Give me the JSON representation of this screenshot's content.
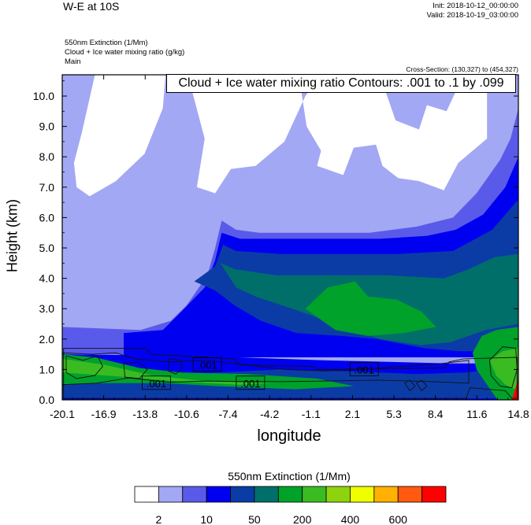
{
  "header": {
    "title": "W-E at 10S",
    "init": "Init: 2018-10-12_00:00:00",
    "valid": "Valid: 2018-10-19_03:00:00",
    "field_line": "550nm Extinction   (1/Mm)",
    "contour_line": "Cloud + Ice water mixing ratio   (g/kg)",
    "domain_line": "Main",
    "cross_section": "Cross-Section: (130,327) to (454,327)"
  },
  "annotation": "Cloud + Ice water mixing ratio Contours: .001 to .1 by .099",
  "colors": {
    "levels": [
      "#ffffff",
      "#a2a8f4",
      "#5a5aea",
      "#0000f0",
      "#0b3ca6",
      "#006f6a",
      "#00a22a",
      "#3bbb22",
      "#8ed40e",
      "#f0ff00",
      "#ffb000",
      "#ff5a10",
      "#ff0000"
    ]
  },
  "chart_data": {
    "type": "heatmap",
    "subtype": "vertical cross-section with filled contours and line contours",
    "title": "W-E at 10S",
    "xlabel": "longitude",
    "ylabel": "Height (km)",
    "xlim": [
      -20.1,
      14.8
    ],
    "ylim": [
      0.0,
      10.7
    ],
    "x_ticks": [
      "-20.1",
      "-16.9",
      "-13.8",
      "-10.6",
      "-7.4",
      "-4.2",
      "-1.1",
      "2.1",
      "5.3",
      "8.4",
      "11.6",
      "14.8"
    ],
    "y_ticks": [
      "0.0",
      "1.0",
      "2.0",
      "3.0",
      "4.0",
      "5.0",
      "6.0",
      "7.0",
      "8.0",
      "9.0",
      "10.0"
    ],
    "colorbar": {
      "title": "550nm Extinction  (1/Mm)",
      "labels": [
        "2",
        "10",
        "50",
        "200",
        "400",
        "600"
      ],
      "n_colors": 13
    },
    "contour_labels": [
      {
        "text": ".001",
        "x": -9.0,
        "y": 1.15
      },
      {
        "text": ".001",
        "x": -12.9,
        "y": 0.55
      },
      {
        "text": ".001",
        "x": -5.7,
        "y": 0.55
      },
      {
        "text": ".001",
        "x": 3.0,
        "y": 1.0
      }
    ],
    "regions": [
      {
        "level": 1,
        "points": [
          [
            -20.1,
            10.7
          ],
          [
            14.8,
            10.7
          ],
          [
            14.8,
            1.8
          ],
          [
            -20.1,
            1.8
          ]
        ]
      },
      {
        "level": 0,
        "points": [
          [
            -17.6,
            10.7
          ],
          [
            -12.2,
            10.7
          ],
          [
            -12.4,
            9.6
          ],
          [
            -13.8,
            8.1
          ],
          [
            -16.0,
            7.2
          ],
          [
            -18.0,
            6.7
          ],
          [
            -19.0,
            7.0
          ],
          [
            -19.2,
            7.8
          ],
          [
            -18.6,
            8.8
          ]
        ]
      },
      {
        "level": 0,
        "points": [
          [
            -10.5,
            10.7
          ],
          [
            -2.0,
            10.7
          ],
          [
            -1.4,
            9.0
          ],
          [
            -0.3,
            8.2
          ],
          [
            -0.6,
            7.7
          ],
          [
            1.4,
            7.4
          ],
          [
            2.2,
            8.3
          ],
          [
            3.9,
            8.4
          ],
          [
            4.4,
            7.7
          ],
          [
            5.6,
            7.3
          ],
          [
            7.2,
            7.2
          ],
          [
            9.1,
            6.9
          ],
          [
            10.2,
            7.8
          ],
          [
            12.4,
            8.6
          ],
          [
            12.4,
            10.7
          ],
          [
            10.6,
            10.7
          ],
          [
            9.3,
            9.5
          ],
          [
            7.8,
            9.7
          ],
          [
            7.2,
            8.9
          ],
          [
            5.4,
            9.2
          ],
          [
            4.2,
            10.7
          ],
          [
            -0.3,
            10.7
          ],
          [
            -1.5,
            10.0
          ],
          [
            -3.1,
            8.5
          ],
          [
            -5.3,
            7.7
          ],
          [
            -7.2,
            7.6
          ],
          [
            -8.4,
            6.8
          ],
          [
            -9.8,
            7.0
          ],
          [
            -9.2,
            8.6
          ]
        ]
      },
      {
        "level": 2,
        "points": [
          [
            -20.1,
            2.4
          ],
          [
            -14.1,
            2.3
          ],
          [
            -11.8,
            2.6
          ],
          [
            -10.6,
            3.1
          ],
          [
            -9.0,
            4.1
          ],
          [
            -8.4,
            5.0
          ],
          [
            -7.9,
            5.9
          ],
          [
            -6.8,
            5.6
          ],
          [
            -5.0,
            5.5
          ],
          [
            -1.5,
            5.5
          ],
          [
            3.4,
            5.5
          ],
          [
            7.0,
            5.7
          ],
          [
            9.8,
            6.0
          ],
          [
            11.6,
            6.8
          ],
          [
            13.4,
            7.9
          ],
          [
            14.2,
            8.6
          ],
          [
            14.8,
            9.6
          ],
          [
            14.8,
            1.5
          ],
          [
            -20.1,
            1.5
          ]
        ]
      },
      {
        "level": 3,
        "points": [
          [
            -15.4,
            2.2
          ],
          [
            -12.4,
            2.3
          ],
          [
            -11.0,
            2.9
          ],
          [
            -9.2,
            3.7
          ],
          [
            -8.4,
            4.6
          ],
          [
            -7.9,
            5.5
          ],
          [
            -6.5,
            5.3
          ],
          [
            -4.0,
            5.3
          ],
          [
            0.2,
            5.3
          ],
          [
            4.2,
            5.3
          ],
          [
            7.8,
            5.4
          ],
          [
            10.0,
            5.6
          ],
          [
            12.1,
            6.1
          ],
          [
            13.8,
            7.0
          ],
          [
            14.8,
            8.0
          ],
          [
            14.8,
            1.4
          ],
          [
            -15.4,
            1.4
          ]
        ]
      },
      {
        "level": 4,
        "points": [
          [
            -10.0,
            3.9
          ],
          [
            -8.4,
            4.4
          ],
          [
            -7.8,
            5.1
          ],
          [
            -6.8,
            4.9
          ],
          [
            -3.3,
            4.8
          ],
          [
            0.9,
            4.8
          ],
          [
            5.5,
            4.8
          ],
          [
            9.8,
            4.9
          ],
          [
            12.8,
            5.6
          ],
          [
            14.8,
            6.6
          ],
          [
            14.8,
            1.6
          ],
          [
            10.3,
            1.6
          ],
          [
            7.6,
            1.7
          ],
          [
            4.0,
            2.0
          ],
          [
            1.3,
            2.1
          ],
          [
            -2.2,
            2.2
          ],
          [
            -4.9,
            2.6
          ],
          [
            -6.9,
            3.1
          ],
          [
            -8.4,
            3.6
          ]
        ]
      },
      {
        "level": 5,
        "points": [
          [
            -8.0,
            4.5
          ],
          [
            -6.9,
            4.3
          ],
          [
            -3.7,
            4.1
          ],
          [
            0.2,
            4.1
          ],
          [
            4.8,
            4.1
          ],
          [
            9.1,
            4.0
          ],
          [
            11.0,
            4.3
          ],
          [
            13.0,
            4.7
          ],
          [
            14.8,
            4.8
          ],
          [
            14.8,
            2.5
          ],
          [
            12.3,
            2.3
          ],
          [
            9.6,
            1.9
          ],
          [
            7.3,
            1.8
          ],
          [
            4.2,
            2.0
          ],
          [
            0.8,
            2.5
          ],
          [
            -2.5,
            3.0
          ],
          [
            -5.3,
            3.4
          ],
          [
            -6.8,
            3.7
          ]
        ]
      },
      {
        "level": 6,
        "points": [
          [
            -1.5,
            3.0
          ],
          [
            0.2,
            3.7
          ],
          [
            2.3,
            3.9
          ],
          [
            3.3,
            3.4
          ],
          [
            5.5,
            3.3
          ],
          [
            7.4,
            2.9
          ],
          [
            8.5,
            2.4
          ],
          [
            6.0,
            2.2
          ],
          [
            3.3,
            2.1
          ],
          [
            0.8,
            2.3
          ]
        ]
      },
      {
        "level": 3,
        "points": [
          [
            -20.1,
            1.5
          ],
          [
            -10.0,
            1.45
          ],
          [
            0.0,
            1.3
          ],
          [
            9.6,
            1.2
          ],
          [
            14.8,
            1.2
          ],
          [
            14.8,
            0.0
          ],
          [
            -20.1,
            0.0
          ]
        ]
      },
      {
        "level": 4,
        "points": [
          [
            -20.1,
            0.8
          ],
          [
            -13.0,
            0.8
          ],
          [
            -8.0,
            0.9
          ],
          [
            -3.5,
            1.0
          ],
          [
            1.0,
            0.95
          ],
          [
            7.0,
            0.85
          ],
          [
            10.8,
            0.9
          ],
          [
            14.8,
            1.1
          ],
          [
            14.8,
            0.05
          ],
          [
            -20.1,
            0.05
          ]
        ]
      },
      {
        "level": 6,
        "points": [
          [
            -20.1,
            1.5
          ],
          [
            -17.6,
            1.4
          ],
          [
            -14.2,
            1.05
          ],
          [
            -11.0,
            0.9
          ],
          [
            -5.9,
            0.85
          ],
          [
            -0.6,
            0.7
          ],
          [
            2.2,
            0.45
          ],
          [
            -2.3,
            0.35
          ],
          [
            -8.2,
            0.45
          ],
          [
            -12.3,
            0.55
          ],
          [
            -17.0,
            0.55
          ],
          [
            -20.1,
            0.5
          ]
        ]
      },
      {
        "level": 7,
        "points": [
          [
            -20.1,
            1.35
          ],
          [
            -16.8,
            1.15
          ],
          [
            -13.2,
            0.8
          ],
          [
            -8.8,
            0.6
          ],
          [
            -3.9,
            0.55
          ],
          [
            -6.7,
            0.5
          ],
          [
            -11.1,
            0.6
          ],
          [
            -15.0,
            0.75
          ],
          [
            -20.1,
            0.9
          ]
        ]
      },
      {
        "level": 6,
        "points": [
          [
            11.3,
            1.55
          ],
          [
            12.0,
            2.1
          ],
          [
            13.1,
            2.3
          ],
          [
            14.8,
            2.4
          ],
          [
            14.8,
            0.0
          ],
          [
            13.2,
            0.0
          ],
          [
            12.4,
            0.5
          ],
          [
            11.6,
            1.0
          ]
        ]
      },
      {
        "level": 7,
        "points": [
          [
            12.6,
            1.3
          ],
          [
            13.6,
            1.6
          ],
          [
            14.8,
            1.7
          ],
          [
            14.8,
            0.3
          ],
          [
            13.8,
            0.5
          ],
          [
            13.1,
            0.8
          ]
        ]
      },
      {
        "level": 12,
        "points": [
          [
            14.3,
            0.0
          ],
          [
            14.8,
            0.0
          ],
          [
            14.8,
            0.7
          ]
        ]
      }
    ],
    "contours": [
      {
        "closed": true,
        "points": [
          [
            -20.1,
            1.55
          ],
          [
            -17.8,
            1.5
          ],
          [
            -16.0,
            1.55
          ],
          [
            -14.5,
            1.35
          ],
          [
            -12.0,
            1.25
          ],
          [
            -9.0,
            1.3
          ],
          [
            -6.0,
            1.15
          ],
          [
            -3.0,
            1.0
          ],
          [
            0.0,
            0.95
          ],
          [
            3.0,
            1.0
          ],
          [
            5.0,
            1.08
          ],
          [
            8.0,
            1.15
          ],
          [
            10.0,
            1.25
          ],
          [
            11.0,
            1.3
          ],
          [
            11.0,
            0.55
          ],
          [
            8.0,
            0.6
          ],
          [
            4.0,
            0.65
          ],
          [
            0.0,
            0.62
          ],
          [
            -3.0,
            0.6
          ],
          [
            -6.0,
            0.6
          ],
          [
            -9.0,
            0.62
          ],
          [
            -12.0,
            0.58
          ],
          [
            -15.0,
            0.72
          ],
          [
            -17.5,
            0.55
          ],
          [
            -20.1,
            0.5
          ]
        ]
      },
      {
        "closed": true,
        "points": [
          [
            -19.8,
            1.45
          ],
          [
            -18.5,
            1.3
          ],
          [
            -17.4,
            1.45
          ],
          [
            -17.0,
            1.1
          ],
          [
            -17.6,
            0.8
          ],
          [
            -19.0,
            0.7
          ],
          [
            -19.8,
            0.9
          ]
        ]
      },
      {
        "closed": true,
        "points": [
          [
            -15.4,
            1.2
          ],
          [
            -14.3,
            1.25
          ],
          [
            -13.6,
            1.0
          ],
          [
            -14.2,
            0.7
          ],
          [
            -15.3,
            0.75
          ]
        ]
      },
      {
        "closed": true,
        "points": [
          [
            -11.9,
            1.35
          ],
          [
            -11.1,
            1.3
          ],
          [
            -10.9,
            1.05
          ],
          [
            -11.4,
            0.85
          ],
          [
            -12.0,
            0.95
          ]
        ]
      },
      {
        "closed": true,
        "points": [
          [
            13.6,
            1.75
          ],
          [
            14.6,
            1.7
          ],
          [
            14.7,
            1.0
          ],
          [
            14.3,
            0.4
          ],
          [
            13.4,
            0.45
          ],
          [
            12.7,
            0.8
          ],
          [
            12.6,
            1.3
          ]
        ]
      },
      {
        "closed": true,
        "points": [
          [
            -20.0,
            1.7
          ],
          [
            -13.7,
            1.7
          ],
          [
            -13.3,
            1.5
          ],
          [
            -6.9,
            1.35
          ],
          [
            -6.6,
            1.15
          ],
          [
            -0.9,
            1.1
          ],
          [
            -0.6,
            1.0
          ],
          [
            9.2,
            1.05
          ],
          [
            9.5,
            1.25
          ],
          [
            10.6,
            1.35
          ],
          [
            14.7,
            1.4
          ],
          [
            14.7,
            0.05
          ],
          [
            14.3,
            0.05
          ],
          [
            13.8,
            0.3
          ],
          [
            11.1,
            0.4
          ],
          [
            10.8,
            0.05
          ],
          [
            -20.0,
            0.05
          ]
        ]
      },
      {
        "closed": true,
        "points": [
          [
            6.1,
            0.55
          ],
          [
            6.5,
            0.65
          ],
          [
            6.9,
            0.45
          ],
          [
            6.5,
            0.3
          ]
        ]
      },
      {
        "closed": true,
        "points": [
          [
            7.0,
            0.55
          ],
          [
            7.4,
            0.65
          ],
          [
            7.8,
            0.45
          ],
          [
            7.4,
            0.3
          ]
        ]
      }
    ]
  }
}
